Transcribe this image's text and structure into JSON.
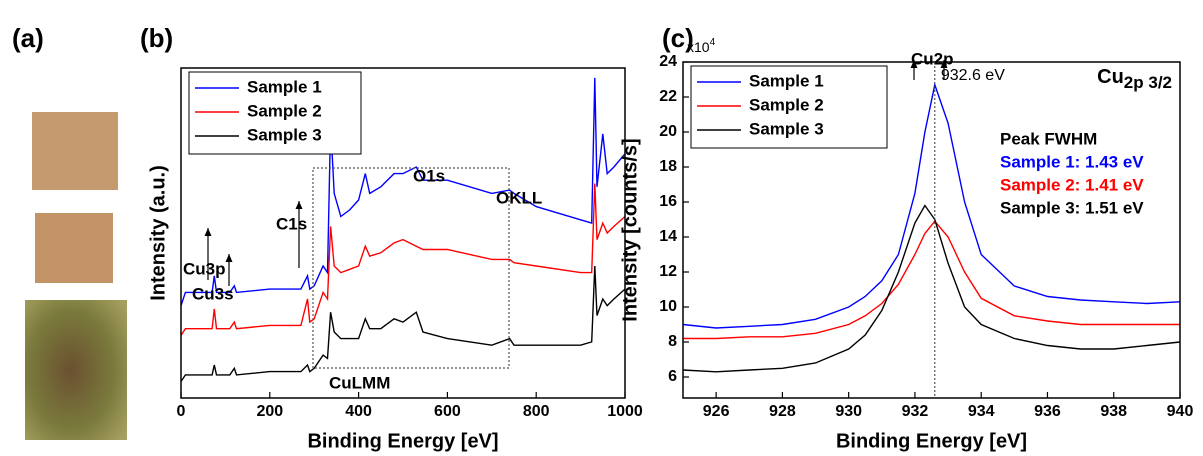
{
  "photo_panel": {
    "label": "(a)"
  },
  "chart_data": [
    {
      "type": "line",
      "panel": "(b)",
      "x_label": "Binding Energy [eV]",
      "y_label": "Intensity (a.u.)",
      "xlim": [
        0,
        1000
      ],
      "xticks": [
        0,
        200,
        400,
        600,
        800,
        1000
      ],
      "ylim": [
        0,
        100
      ],
      "legend": "top-left",
      "frame": true,
      "x": [
        0,
        10,
        40,
        70,
        75,
        80,
        110,
        120,
        125,
        200,
        270,
        285,
        290,
        300,
        320,
        330,
        337,
        345,
        360,
        380,
        400,
        415,
        425,
        450,
        480,
        500,
        530,
        545,
        600,
        700,
        740,
        750,
        800,
        900,
        925,
        932,
        937,
        950,
        960,
        975,
        1000
      ],
      "series": [
        {
          "name": "Sample 1",
          "color": "#0000ff",
          "values": [
            28,
            32,
            32,
            32,
            37,
            32,
            32,
            34,
            32,
            33,
            33,
            37,
            33,
            34,
            40,
            38,
            83,
            62,
            55,
            57,
            60,
            68,
            62,
            64,
            68,
            68,
            70,
            66,
            66,
            62,
            63,
            62,
            58,
            54,
            53,
            97,
            64,
            80,
            68,
            70,
            74
          ]
        },
        {
          "name": "Sample 2",
          "color": "#ff0000",
          "values": [
            19,
            21,
            21,
            21,
            27,
            21,
            21,
            23,
            21,
            22,
            22,
            30,
            23,
            24,
            32,
            30,
            52,
            40,
            38,
            39,
            40,
            46,
            43,
            44,
            47,
            48,
            46,
            45,
            45,
            42,
            42,
            41,
            40,
            38,
            38,
            65,
            48,
            53,
            50,
            52,
            55
          ]
        },
        {
          "name": "Sample 3",
          "color": "#000000",
          "values": [
            5,
            7,
            7,
            7,
            10,
            7,
            7,
            9,
            7,
            8,
            8,
            10,
            8,
            9,
            13,
            12,
            26,
            20,
            18,
            18,
            18,
            24,
            21,
            21,
            24,
            23,
            26,
            20,
            18,
            16,
            18,
            16,
            16,
            16,
            17,
            40,
            25,
            30,
            28,
            30,
            33
          ]
        }
      ],
      "annotations": [
        "Cu3p",
        "Cu3s",
        "C1s",
        "O1s",
        "OKLL",
        "Cu2p",
        "CuLMM"
      ]
    },
    {
      "type": "line",
      "panel": "(c)",
      "x_label": "Binding Energy [eV]",
      "y_label": "Intensity [counts/s]",
      "y_multiplier": {
        "base": "x10",
        "exp": "4"
      },
      "title": {
        "main": "Cu",
        "sub": "2p 3/2"
      },
      "xlim": [
        925,
        940
      ],
      "xticks": [
        926,
        928,
        930,
        932,
        934,
        936,
        938,
        940
      ],
      "ylim": [
        4.8,
        24
      ],
      "yticks": [
        6,
        8,
        10,
        12,
        14,
        16,
        18,
        20,
        22,
        24
      ],
      "legend": "top-left",
      "frame": true,
      "vline": 932.6,
      "vline_label": "932.6 eV",
      "fwhm_title": "Peak FWHM",
      "fwhm_labels": [
        "Sample 1: 1.43 eV",
        "Sample 2: 1.41 eV",
        "Sample 3: 1.51 eV"
      ],
      "x": [
        925,
        926,
        927,
        928,
        929,
        930,
        930.5,
        931,
        931.5,
        932,
        932.3,
        932.6,
        933,
        933.5,
        934,
        935,
        936,
        937,
        938,
        939,
        940
      ],
      "series": [
        {
          "name": "Sample 1",
          "color": "#0000ff",
          "values": [
            9.0,
            8.8,
            8.9,
            9.0,
            9.3,
            10.0,
            10.6,
            11.5,
            13.0,
            16.5,
            20.0,
            22.7,
            20.5,
            16.0,
            13.0,
            11.2,
            10.6,
            10.4,
            10.3,
            10.2,
            10.3
          ]
        },
        {
          "name": "Sample 2",
          "color": "#ff0000",
          "values": [
            8.2,
            8.2,
            8.3,
            8.3,
            8.5,
            9.0,
            9.5,
            10.2,
            11.3,
            13.0,
            14.2,
            14.9,
            14.0,
            12.0,
            10.5,
            9.5,
            9.2,
            9.0,
            9.0,
            9.0,
            9.0
          ]
        },
        {
          "name": "Sample 3",
          "color": "#000000",
          "values": [
            6.4,
            6.3,
            6.4,
            6.5,
            6.8,
            7.6,
            8.4,
            9.8,
            12.0,
            14.8,
            15.8,
            15.0,
            12.5,
            10.0,
            9.0,
            8.2,
            7.8,
            7.6,
            7.6,
            7.8,
            8.0
          ]
        }
      ]
    }
  ]
}
